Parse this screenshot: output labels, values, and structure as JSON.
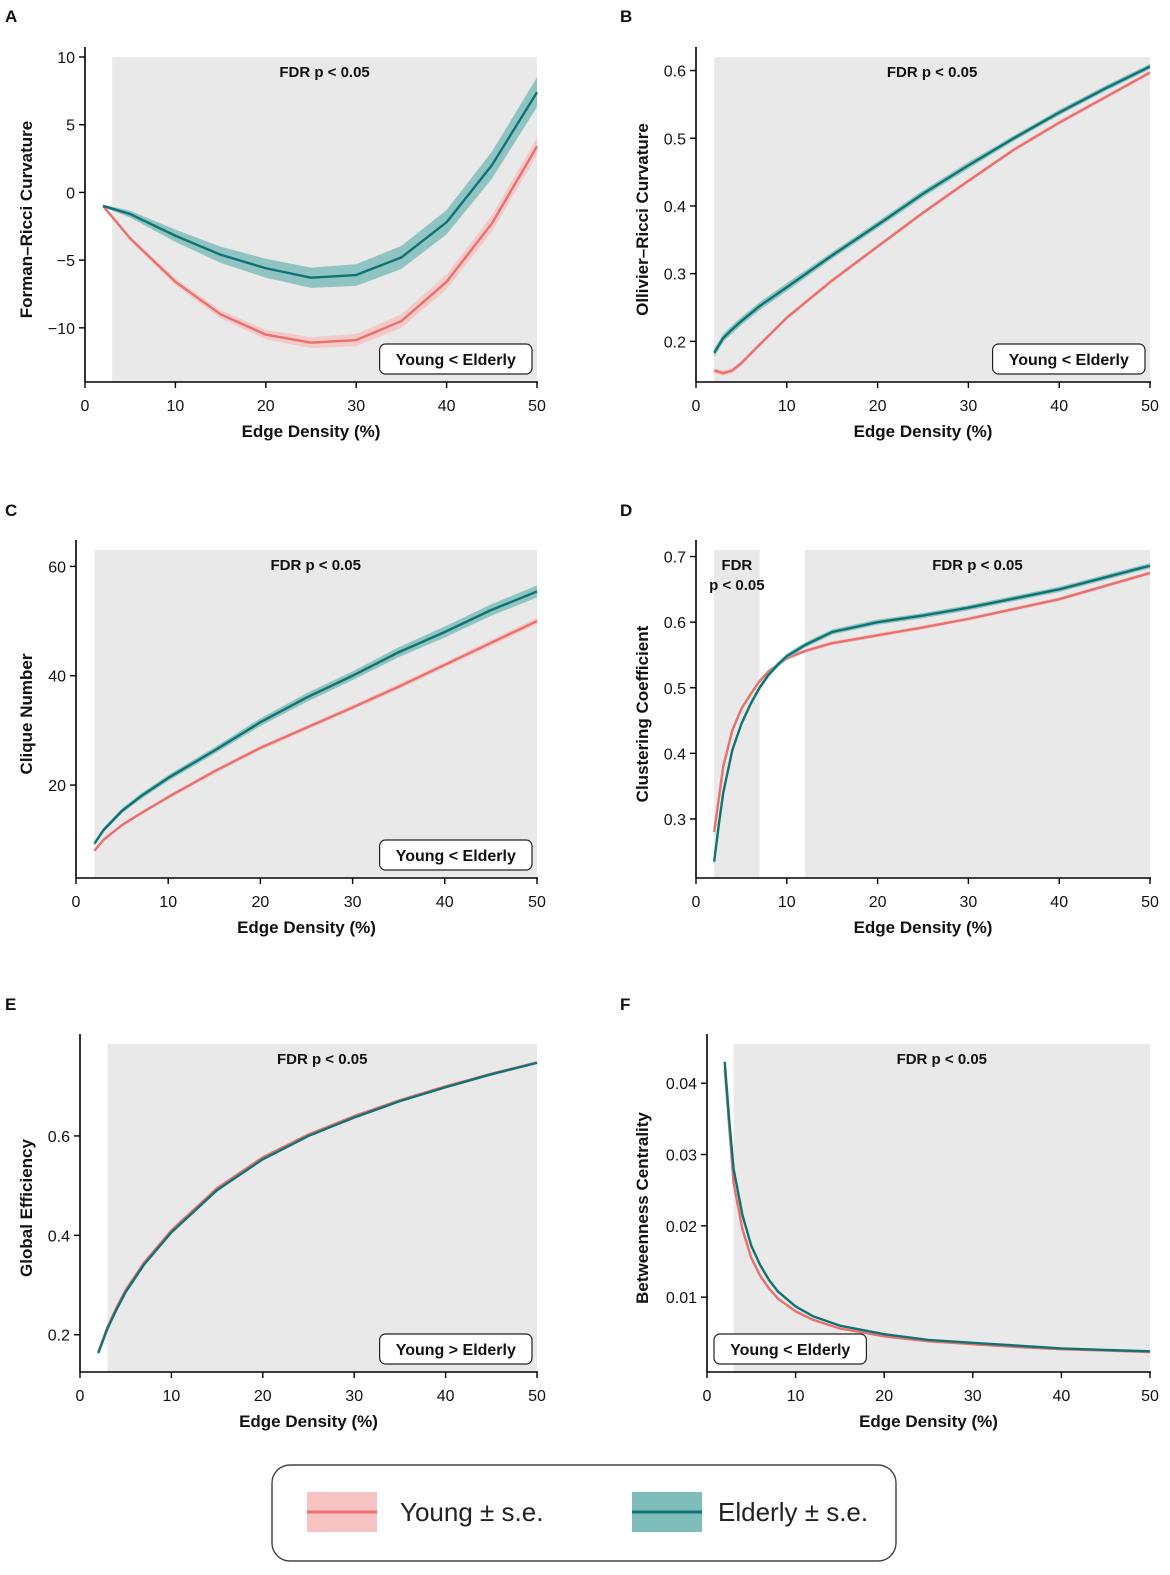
{
  "colors": {
    "young_line": "#e8706e",
    "young_band": "#f6c4c3",
    "elderly_line": "#0f7372",
    "elderly_band": "#7fbdbb",
    "shade": "#e9e9e9"
  },
  "legend": {
    "young_label": "Young ± s.e.",
    "elderly_label": "Elderly ± s.e."
  },
  "chart_data": [
    {
      "panel": "A",
      "type": "line",
      "xlabel": "Edge Density (%)",
      "ylabel": "Forman–Ricci Curvature",
      "xlim": [
        0,
        50
      ],
      "ylim": [
        -14,
        10
      ],
      "xticks": [
        0,
        10,
        20,
        30,
        40,
        50
      ],
      "yticks": [
        -10,
        -5,
        0,
        5,
        10
      ],
      "significance": [
        {
          "range": [
            3,
            50
          ],
          "label": "FDR p < 0.05"
        }
      ],
      "comparison": "Young < Elderly",
      "comparison_pos": "bottom-right",
      "x": [
        2,
        5,
        10,
        15,
        20,
        25,
        30,
        35,
        40,
        45,
        50
      ],
      "series": [
        {
          "name": "Young",
          "values": [
            -1.0,
            -3.4,
            -6.6,
            -9.0,
            -10.5,
            -11.1,
            -10.9,
            -9.5,
            -6.6,
            -2.3,
            3.4
          ],
          "se": [
            0.1,
            0.15,
            0.25,
            0.3,
            0.35,
            0.4,
            0.45,
            0.5,
            0.55,
            0.6,
            0.65
          ]
        },
        {
          "name": "Elderly",
          "values": [
            -1.0,
            -1.6,
            -3.2,
            -4.6,
            -5.6,
            -6.3,
            -6.1,
            -4.8,
            -2.2,
            2.0,
            7.4
          ],
          "se": [
            0.1,
            0.25,
            0.45,
            0.6,
            0.7,
            0.75,
            0.8,
            0.85,
            0.9,
            1.0,
            1.1
          ]
        }
      ]
    },
    {
      "panel": "B",
      "type": "line",
      "xlabel": "Edge Density (%)",
      "ylabel": "Ollivier–Ricci Curvature",
      "xlim": [
        0,
        50
      ],
      "ylim": [
        0.14,
        0.62
      ],
      "xticks": [
        0,
        10,
        20,
        30,
        40,
        50
      ],
      "yticks": [
        0.2,
        0.3,
        0.4,
        0.5,
        0.6
      ],
      "significance": [
        {
          "range": [
            2,
            50
          ],
          "label": "FDR p < 0.05"
        }
      ],
      "comparison": "Young < Elderly",
      "comparison_pos": "bottom-right",
      "x": [
        2,
        3,
        4,
        5,
        7,
        10,
        15,
        20,
        25,
        30,
        35,
        40,
        45,
        50
      ],
      "series": [
        {
          "name": "Young",
          "values": [
            0.157,
            0.153,
            0.157,
            0.168,
            0.195,
            0.235,
            0.29,
            0.34,
            0.39,
            0.437,
            0.483,
            0.523,
            0.56,
            0.597
          ],
          "se": [
            0.004,
            0.004,
            0.004,
            0.004,
            0.003,
            0.003,
            0.003,
            0.003,
            0.003,
            0.003,
            0.003,
            0.003,
            0.003,
            0.003
          ]
        },
        {
          "name": "Elderly",
          "values": [
            0.183,
            0.205,
            0.218,
            0.23,
            0.252,
            0.28,
            0.327,
            0.372,
            0.418,
            0.46,
            0.5,
            0.538,
            0.573,
            0.606
          ],
          "se": [
            0.006,
            0.006,
            0.006,
            0.006,
            0.006,
            0.006,
            0.005,
            0.005,
            0.005,
            0.005,
            0.004,
            0.004,
            0.004,
            0.004
          ]
        }
      ]
    },
    {
      "panel": "C",
      "type": "line",
      "xlabel": "Edge Density (%)",
      "ylabel": "Clique Number",
      "xlim": [
        0,
        50
      ],
      "ylim": [
        3,
        63
      ],
      "xticks": [
        0,
        10,
        20,
        30,
        40,
        50
      ],
      "yticks": [
        20,
        40,
        60
      ],
      "significance": [
        {
          "range": [
            2,
            50
          ],
          "label": "FDR p < 0.05"
        }
      ],
      "comparison": "Young < Elderly",
      "comparison_pos": "bottom-right",
      "x": [
        2,
        3,
        5,
        7,
        10,
        15,
        20,
        25,
        30,
        35,
        40,
        45,
        50
      ],
      "series": [
        {
          "name": "Young",
          "values": [
            8.0,
            10.0,
            12.7,
            14.8,
            17.8,
            22.5,
            26.8,
            30.5,
            34.2,
            38.0,
            42.0,
            46.0,
            50.0
          ],
          "se": [
            0.3,
            0.3,
            0.3,
            0.35,
            0.35,
            0.4,
            0.4,
            0.45,
            0.45,
            0.5,
            0.5,
            0.55,
            0.6
          ]
        },
        {
          "name": "Elderly",
          "values": [
            9.3,
            11.8,
            15.3,
            17.9,
            21.3,
            26.3,
            31.5,
            36.0,
            40.0,
            44.3,
            48.0,
            52.0,
            55.4
          ],
          "se": [
            0.4,
            0.4,
            0.45,
            0.5,
            0.55,
            0.6,
            0.7,
            0.8,
            0.8,
            0.9,
            1.0,
            1.05,
            1.1
          ]
        }
      ]
    },
    {
      "panel": "D",
      "type": "line",
      "xlabel": "Edge Density (%)",
      "ylabel": "Clustering Coefficient",
      "xlim": [
        0,
        50
      ],
      "ylim": [
        0.21,
        0.71
      ],
      "xticks": [
        0,
        10,
        20,
        30,
        40,
        50
      ],
      "yticks": [
        0.3,
        0.4,
        0.5,
        0.6,
        0.7
      ],
      "significance": [
        {
          "range": [
            2,
            7
          ],
          "label": "FDR",
          "label2": "p < 0.05"
        },
        {
          "range": [
            12,
            50
          ],
          "label": "FDR p < 0.05"
        }
      ],
      "comparison": "",
      "comparison_pos": "none",
      "x": [
        2,
        2.5,
        3,
        4,
        5,
        6,
        7,
        8,
        9,
        10,
        12,
        15,
        20,
        25,
        30,
        35,
        40,
        45,
        50
      ],
      "series": [
        {
          "name": "Young",
          "values": [
            0.28,
            0.33,
            0.38,
            0.435,
            0.468,
            0.49,
            0.51,
            0.525,
            0.535,
            0.545,
            0.556,
            0.568,
            0.58,
            0.592,
            0.605,
            0.62,
            0.635,
            0.655,
            0.675
          ],
          "se": [
            0.004,
            0.004,
            0.004,
            0.003,
            0.003,
            0.003,
            0.003,
            0.003,
            0.003,
            0.003,
            0.003,
            0.003,
            0.003,
            0.003,
            0.003,
            0.003,
            0.003,
            0.003,
            0.003
          ]
        },
        {
          "name": "Elderly",
          "values": [
            0.235,
            0.29,
            0.34,
            0.405,
            0.445,
            0.475,
            0.5,
            0.52,
            0.535,
            0.548,
            0.565,
            0.585,
            0.6,
            0.61,
            0.622,
            0.636,
            0.65,
            0.668,
            0.686
          ],
          "se": [
            0.005,
            0.005,
            0.005,
            0.005,
            0.004,
            0.004,
            0.004,
            0.004,
            0.004,
            0.004,
            0.004,
            0.004,
            0.004,
            0.004,
            0.004,
            0.004,
            0.004,
            0.004,
            0.004
          ]
        }
      ]
    },
    {
      "panel": "E",
      "type": "line",
      "xlabel": "Edge Density (%)",
      "ylabel": "Global Efficiency",
      "xlim": [
        0,
        50
      ],
      "ylim": [
        0.125,
        0.785
      ],
      "xticks": [
        0,
        10,
        20,
        30,
        40,
        50
      ],
      "yticks": [
        0.2,
        0.4,
        0.6
      ],
      "significance": [
        {
          "range": [
            3,
            50
          ],
          "label": "FDR p < 0.05"
        }
      ],
      "comparison": "Young > Elderly",
      "comparison_pos": "bottom-right",
      "x": [
        2,
        3,
        4,
        5,
        7,
        10,
        15,
        20,
        25,
        30,
        35,
        40,
        45,
        50
      ],
      "series": [
        {
          "name": "Young",
          "values": [
            0.165,
            0.215,
            0.255,
            0.29,
            0.345,
            0.41,
            0.495,
            0.557,
            0.603,
            0.64,
            0.672,
            0.7,
            0.725,
            0.748
          ],
          "se": [
            0.002,
            0.002,
            0.002,
            0.002,
            0.002,
            0.002,
            0.002,
            0.002,
            0.002,
            0.002,
            0.002,
            0.002,
            0.002,
            0.002
          ]
        },
        {
          "name": "Elderly",
          "values": [
            0.163,
            0.212,
            0.251,
            0.286,
            0.341,
            0.406,
            0.491,
            0.553,
            0.6,
            0.637,
            0.67,
            0.698,
            0.724,
            0.747
          ],
          "se": [
            0.002,
            0.002,
            0.002,
            0.002,
            0.002,
            0.002,
            0.002,
            0.002,
            0.002,
            0.002,
            0.002,
            0.002,
            0.002,
            0.002
          ]
        }
      ]
    },
    {
      "panel": "F",
      "type": "line",
      "xlabel": "Edge Density (%)",
      "ylabel": "Betweenness Centrality",
      "xlim": [
        0,
        50
      ],
      "ylim": [
        -0.0005,
        0.0455
      ],
      "xticks": [
        0,
        10,
        20,
        30,
        40,
        50
      ],
      "yticks": [
        0.01,
        0.02,
        0.03,
        0.04
      ],
      "significance": [
        {
          "range": [
            3,
            50
          ],
          "label": "FDR p < 0.05"
        }
      ],
      "comparison": "Young < Elderly",
      "comparison_pos": "bottom-left",
      "x": [
        2,
        2.5,
        3,
        4,
        5,
        6,
        7,
        8,
        10,
        12,
        15,
        20,
        25,
        30,
        35,
        40,
        45,
        50
      ],
      "series": [
        {
          "name": "Young",
          "values": [
            0.042,
            0.034,
            0.026,
            0.0195,
            0.0155,
            0.013,
            0.0112,
            0.0098,
            0.008,
            0.0068,
            0.0056,
            0.0045,
            0.0038,
            0.0034,
            0.003,
            0.0027,
            0.0025,
            0.0023
          ],
          "se": [
            0.0002,
            0.0002,
            0.0002,
            0.0001,
            0.0001,
            0.0001,
            0.0001,
            0.0001,
            0.0001,
            0.0001,
            0.0001,
            0.0001,
            0.0001,
            0.0001,
            0.0001,
            0.0001,
            0.0001,
            0.0001
          ]
        },
        {
          "name": "Elderly",
          "values": [
            0.043,
            0.035,
            0.028,
            0.0215,
            0.0172,
            0.0145,
            0.0124,
            0.0108,
            0.0087,
            0.0073,
            0.006,
            0.0048,
            0.004,
            0.0036,
            0.0032,
            0.0028,
            0.0026,
            0.0024
          ],
          "se": [
            0.0002,
            0.0002,
            0.0002,
            0.0001,
            0.0001,
            0.0001,
            0.0001,
            0.0001,
            0.0001,
            0.0001,
            0.0001,
            0.0001,
            0.0001,
            0.0001,
            0.0001,
            0.0001,
            0.0001,
            0.0001
          ]
        }
      ]
    }
  ]
}
